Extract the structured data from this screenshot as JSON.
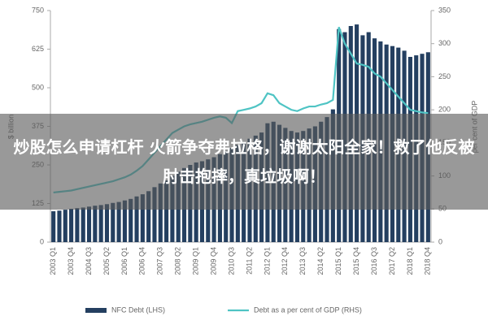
{
  "chart_data": {
    "type": "bar",
    "y_label": "$ billion",
    "y2_label": "per cent of GDP",
    "categories": [
      "2003 Q1",
      null,
      null,
      "2003 Q4",
      null,
      null,
      "2004 Q3",
      null,
      null,
      "2005 Q2",
      null,
      null,
      "2006 Q1",
      null,
      null,
      "2006 Q4",
      null,
      null,
      "2007 Q3",
      null,
      null,
      "2008 Q2",
      null,
      null,
      "2009 Q1",
      null,
      null,
      "2009 Q4",
      null,
      null,
      "2010 Q3",
      null,
      null,
      "2011 Q2",
      null,
      null,
      "2012 Q1",
      null,
      null,
      "2012 Q4",
      null,
      null,
      "2013 Q3",
      null,
      null,
      "2014 Q2",
      null,
      null,
      "2015 Q1",
      null,
      null,
      "2015 Q4",
      null,
      null,
      "2016 Q3",
      null,
      null,
      "2017 Q2",
      null,
      null,
      "2018 Q1",
      null,
      null,
      "2018 Q4"
    ],
    "series": [
      {
        "name": "NFC Debt (LHS)",
        "color": "#243f60",
        "type": "bar",
        "values": [
          100,
          102,
          105,
          108,
          110,
          112,
          115,
          118,
          120,
          123,
          127,
          130,
          135,
          140,
          148,
          155,
          165,
          178,
          190,
          200,
          215,
          228,
          240,
          250,
          258,
          262,
          268,
          275,
          285,
          295,
          305,
          315,
          325,
          335,
          345,
          355,
          385,
          390,
          380,
          370,
          360,
          355,
          360,
          368,
          375,
          390,
          405,
          430,
          690,
          680,
          700,
          705,
          670,
          680,
          660,
          650,
          640,
          635,
          630,
          620,
          600,
          605,
          610,
          615
        ]
      },
      {
        "name": "Debt as a per cent of GDP (RHS)",
        "color": "#4fc4c4",
        "type": "line",
        "axis": "y2",
        "values": [
          75,
          76,
          77,
          78,
          80,
          82,
          84,
          86,
          88,
          90,
          92,
          95,
          98,
          102,
          108,
          115,
          125,
          135,
          145,
          155,
          165,
          170,
          175,
          178,
          180,
          182,
          185,
          188,
          190,
          188,
          180,
          198,
          200,
          202,
          205,
          210,
          225,
          222,
          210,
          205,
          200,
          198,
          202,
          205,
          205,
          208,
          210,
          215,
          325,
          300,
          285,
          270,
          268,
          265,
          255,
          250,
          240,
          230,
          220,
          210,
          200,
          198,
          196,
          195
        ]
      }
    ],
    "ylim": [
      0,
      750
    ],
    "yticks": [
      0,
      125,
      250,
      375,
      500,
      625,
      750
    ],
    "y2lim": [
      0,
      350
    ],
    "y2ticks": [
      0,
      50,
      100,
      150,
      200,
      250,
      300,
      350
    ],
    "legend": "bottom"
  },
  "overlay": {
    "text": "炒股怎么申请杠杆 火箭争夺弗拉格，谢谢太阳全家！救了他反被肘击抱摔，真垃圾啊！"
  }
}
